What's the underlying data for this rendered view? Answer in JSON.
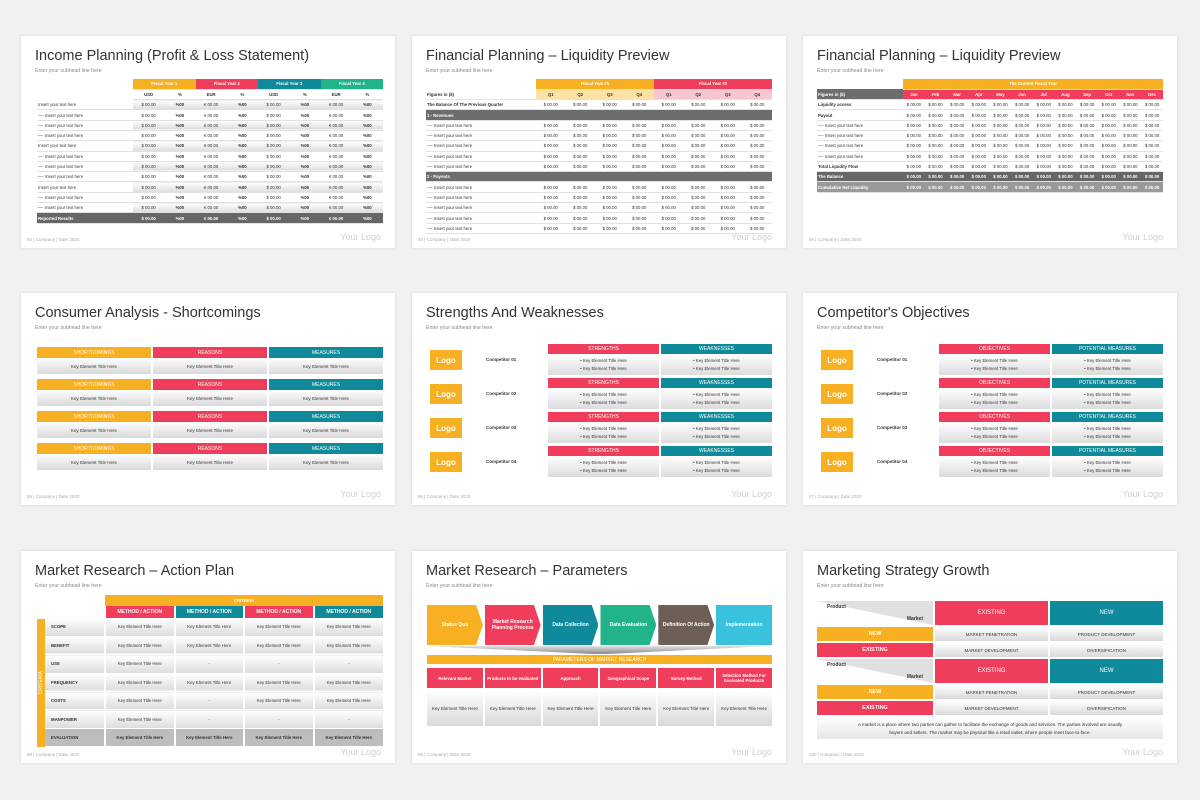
{
  "common": {
    "subhead": "Enter your subhead line here",
    "company": "| Company | Date 2020",
    "logo": "Your Logo"
  },
  "slides": [
    {
      "num": "92",
      "title": "Income Planning (Profit & Loss Statement)",
      "fiscal": [
        "Fiscal Year 1",
        "Fiscal Year 2",
        "Fiscal Year 3",
        "Fiscal Year 4"
      ],
      "cols": [
        "USD",
        "%",
        "EUR",
        "%",
        "USD",
        "%",
        "EUR",
        "%"
      ],
      "rows": [
        "Insert your text here",
        "—- Insert your text here",
        "—- Insert your text here",
        "—- Insert your text here",
        "Insert your text here",
        "—- Insert your text here",
        "—- Insert your text here",
        "—- Insert your text here",
        "Insert your text here",
        "—- Insert your text here",
        "—- Insert your text here"
      ],
      "vals": [
        "$ 00.00",
        "%00",
        "€ 00.00",
        "%00",
        "$ 00.00",
        "%00",
        "€ 00.00",
        "%00"
      ],
      "total": "Reported Results"
    },
    {
      "num": "93",
      "title": "Financial Planning – Liquidity Preview",
      "fiscal": [
        "Fiscal Year #1",
        "Fiscal Year #2"
      ],
      "quarters": [
        "Q1",
        "Q2",
        "Q3",
        "Q4",
        "Q1",
        "Q2",
        "Q3",
        "Q4"
      ],
      "figures": "Figures in ($)",
      "balance": "The Balance Of The Previous Quarter",
      "s1": "1 - Revenues",
      "s2": "2 - Payouts",
      "row": "—- Insert your text here",
      "val": "$ 00.00"
    },
    {
      "num": "94",
      "title": "Financial Planning – Liquidity Preview",
      "year": "The Current Fiscal Year",
      "figures": "Figures in ($)",
      "months": [
        "Jan",
        "Feb",
        "Mar",
        "Apr",
        "May",
        "Jun",
        "Jul",
        "Aug",
        "Sep",
        "Oct",
        "Nov",
        "Dec"
      ],
      "rows": [
        "Liquidity access",
        "Payout",
        "—- Insert your text here",
        "—- Insert your text here",
        "—- Insert your text here",
        "—- Insert your text here",
        "Total Liquidity Flow"
      ],
      "balance": "The Balance",
      "cumulative": "Cumulative Net Liquidity",
      "val": "$ 00.00"
    },
    {
      "num": "95",
      "title": "Consumer Analysis - Shortcomings",
      "headers": [
        "SHORTCOMINGS",
        "REASONS",
        "MEASURES"
      ],
      "cell": "Key Element Title Here"
    },
    {
      "num": "96",
      "title": "Strengths And Weaknesses",
      "headers": [
        "STRENGTHS",
        "WEAKNESSES"
      ],
      "logo": "Logo",
      "competitors": [
        "Competitor 01",
        "Competitor 02",
        "Competitor 03",
        "Competitor 04"
      ],
      "item": "• Key Element Title Here"
    },
    {
      "num": "97",
      "title": "Competitor's Objectives",
      "headers": [
        "OBJECTIVES",
        "POTENTIAL MEASURES"
      ],
      "logo": "Logo",
      "competitors": [
        "Competitor 01",
        "Competitor 02",
        "Competitor 03",
        "Competitor 04"
      ],
      "item": "• Key Element Title Here"
    },
    {
      "num": "98",
      "title": "Market Research – Action Plan",
      "criteria": "CRITERIA",
      "side": "CRITERIA",
      "method": "METHOD / ACTION",
      "rows": [
        "SCOPE",
        "BENEFIT",
        "USE",
        "FREQUENCY",
        "COSTS",
        "MANPOWER",
        "EVALUATION"
      ],
      "cell": "Key Element Title Here",
      "dash": "-"
    },
    {
      "num": "99",
      "title": "Market Research – Parameters",
      "steps": [
        "Status Quo",
        "Market Research Planning Process",
        "Data Collection",
        "Data Evaluation",
        "Definition Of Action",
        "Implementation"
      ],
      "params_title": "PARAMETERS OF MARKET RESEARCH",
      "params": [
        "Relevant Market",
        "Products to be evaluated",
        "Approach",
        "Geographical Scope",
        "Survey Method",
        "Selection Method For Evaluated Products"
      ],
      "cell": "Key Element Title Here"
    },
    {
      "num": "100",
      "title": "Marketing Strategy Growth",
      "product": "Product",
      "market": "Market",
      "existing": "EXISTING",
      "new": "NEW",
      "penetration": "MARKET PENETRATION",
      "product_dev": "PRODUCT DEVELOPMENT",
      "market_dev": "MARKET DEVELOPMENT",
      "diversification": "DIVERSIFICATION",
      "note1": "A market is a place where two parties can gather to facilitate the exchange of goods and services. The parties involved are usually",
      "note2": "buyers and sellers. The market may be physical like a retail outlet, where people meet face-to-face."
    }
  ]
}
